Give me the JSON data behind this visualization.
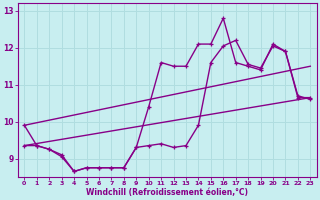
{
  "xlabel": "Windchill (Refroidissement éolien,°C)",
  "xlim": [
    -0.5,
    23.5
  ],
  "ylim": [
    8.5,
    13.2
  ],
  "yticks": [
    9,
    10,
    11,
    12,
    13
  ],
  "xticks": [
    0,
    1,
    2,
    3,
    4,
    5,
    6,
    7,
    8,
    9,
    10,
    11,
    12,
    13,
    14,
    15,
    16,
    17,
    18,
    19,
    20,
    21,
    22,
    23
  ],
  "bg_color": "#c8eef0",
  "grid_color": "#b0dde0",
  "line_color": "#880088",
  "line1_x": [
    0,
    1,
    2,
    3,
    4,
    5,
    6,
    7,
    8,
    9,
    10,
    11,
    12,
    13,
    14,
    15,
    16,
    17,
    18,
    19,
    20,
    21,
    22,
    23
  ],
  "line1_y": [
    9.9,
    9.35,
    9.25,
    9.1,
    8.65,
    8.75,
    8.75,
    8.75,
    8.75,
    9.3,
    10.4,
    11.6,
    11.5,
    11.5,
    12.1,
    12.1,
    12.8,
    11.6,
    11.5,
    11.4,
    12.1,
    11.9,
    10.7,
    10.6
  ],
  "line2_x": [
    0,
    1,
    2,
    3,
    4,
    5,
    6,
    7,
    8,
    9,
    10,
    11,
    12,
    13,
    14,
    15,
    16,
    17,
    18,
    19,
    20,
    21,
    22,
    23
  ],
  "line2_y": [
    9.35,
    9.35,
    9.25,
    9.05,
    8.65,
    8.75,
    8.75,
    8.75,
    8.75,
    9.3,
    9.35,
    9.4,
    9.3,
    9.35,
    9.9,
    11.6,
    12.05,
    12.2,
    11.55,
    11.45,
    12.05,
    11.9,
    10.65,
    10.65
  ],
  "line3_x": [
    0,
    23
  ],
  "line3_y": [
    9.35,
    10.65
  ],
  "line4_x": [
    0,
    23
  ],
  "line4_y": [
    9.9,
    11.5
  ],
  "marker_size": 3.0,
  "line_width": 1.0
}
